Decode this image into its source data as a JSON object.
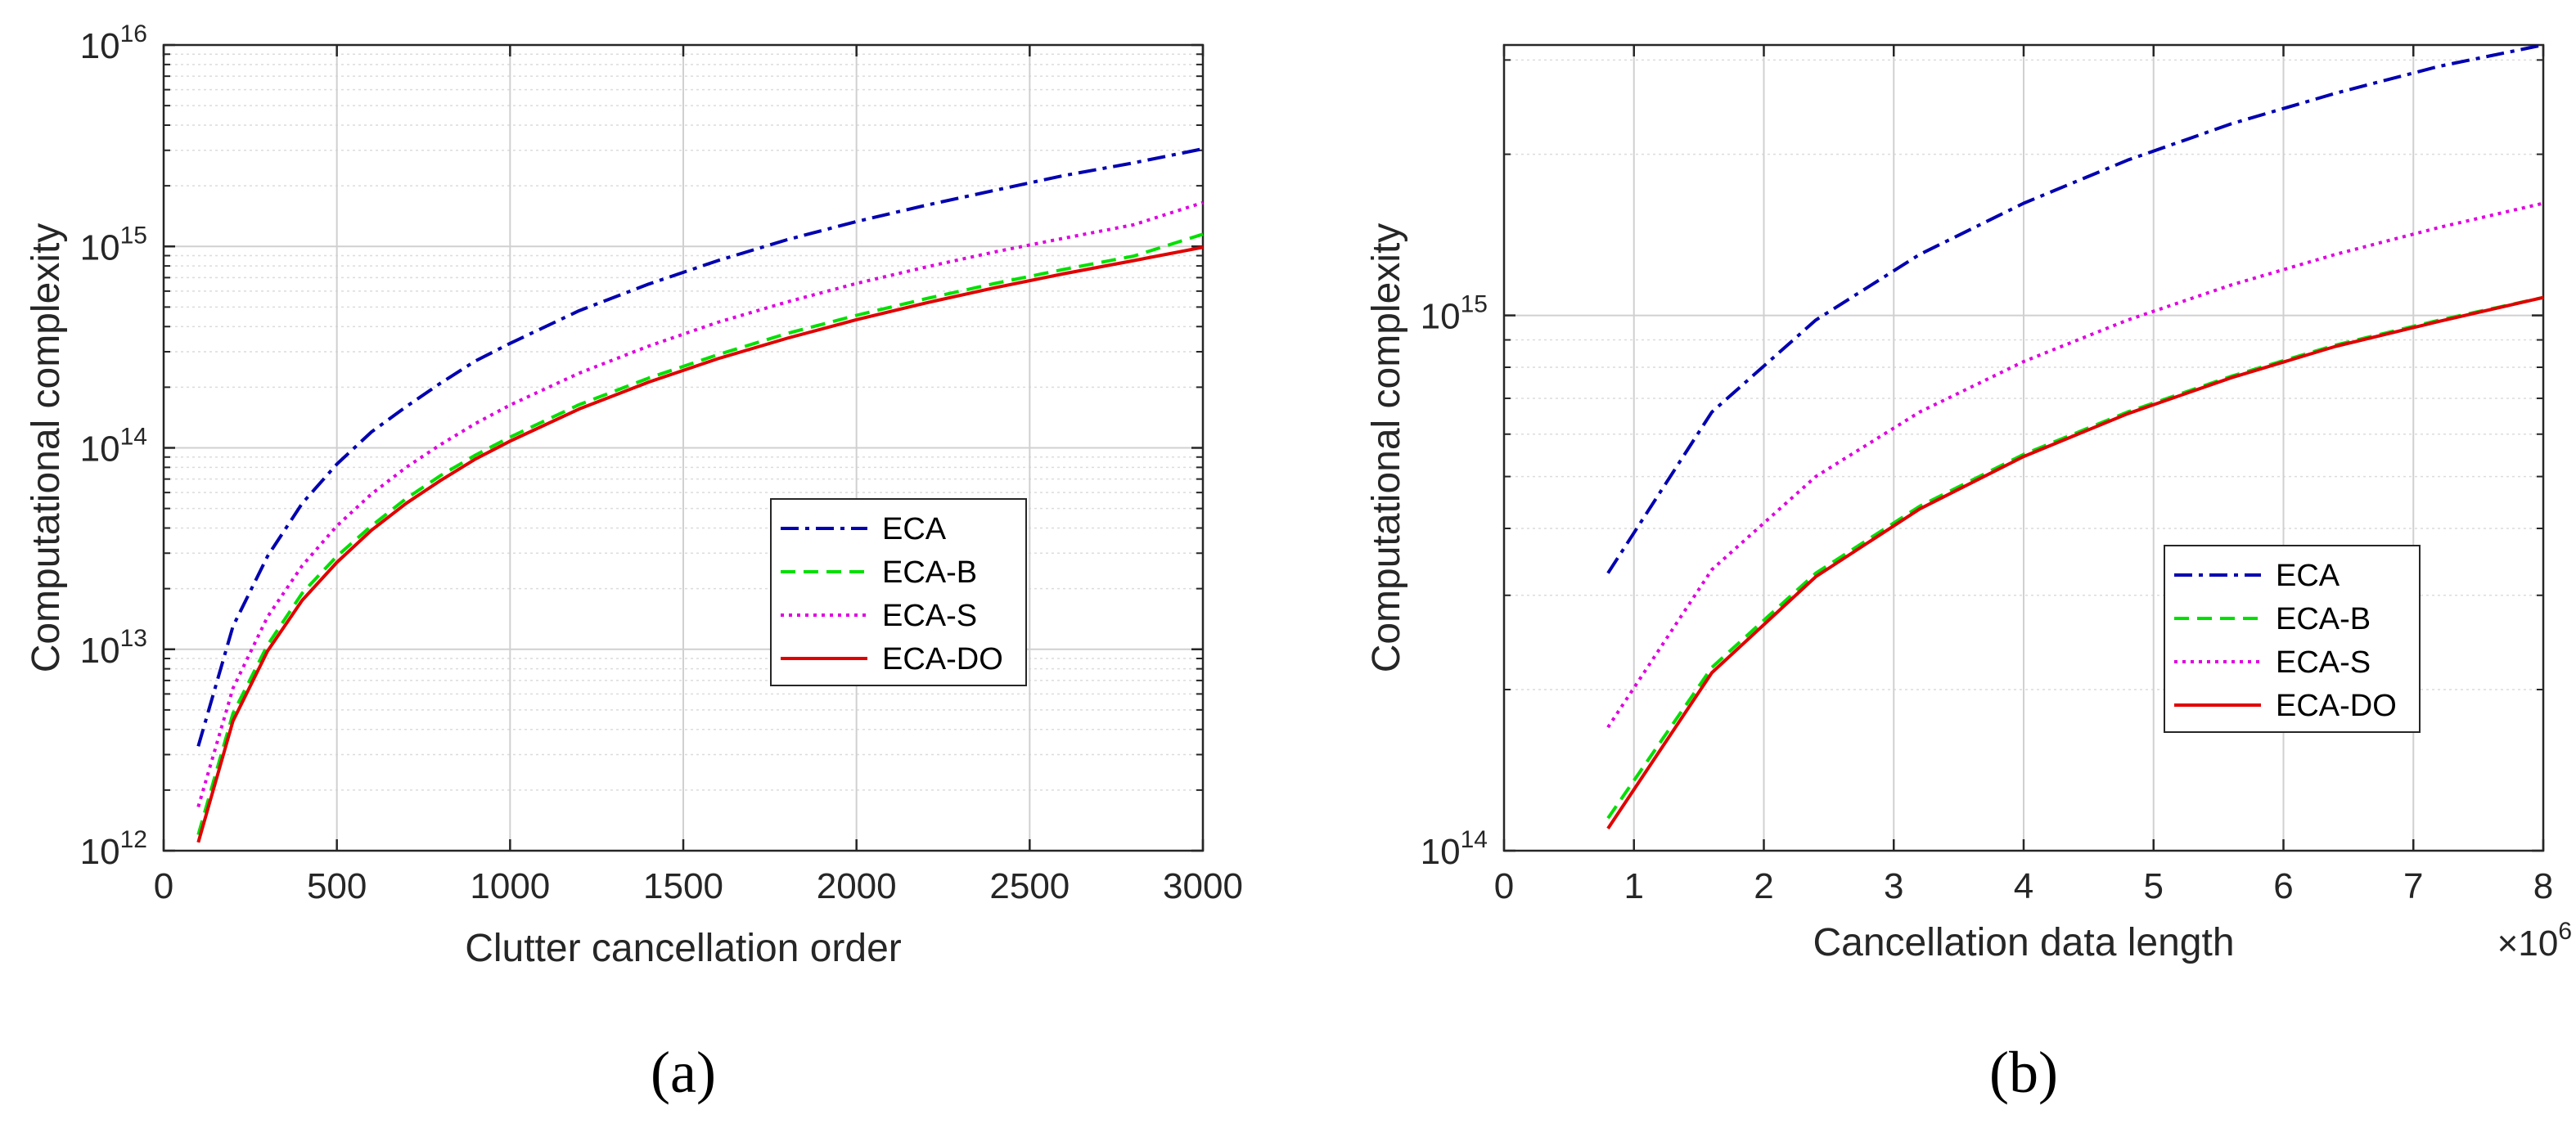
{
  "chart_data": [
    {
      "type": "line",
      "panel_label": "(a)",
      "xlabel": "Clutter cancellation order",
      "ylabel": "Computational complexity",
      "yscale": "log",
      "xlim": [
        0,
        3000
      ],
      "ylim": [
        1000000000000.0,
        1e+16
      ],
      "xticks": [
        0,
        500,
        1000,
        1500,
        2000,
        2500,
        3000
      ],
      "xtick_labels": [
        "0",
        "500",
        "1000",
        "1500",
        "2000",
        "2500",
        "3000"
      ],
      "ytick_base": "10",
      "ytick_exponents": [
        "12",
        "13",
        "14",
        "15",
        "16"
      ],
      "x_multiplier_base": "",
      "x_multiplier_exp": "",
      "x": [
        100,
        200,
        300,
        400,
        500,
        600,
        700,
        800,
        900,
        1000,
        1200,
        1400,
        1600,
        1800,
        2000,
        2200,
        2400,
        2600,
        2800,
        3000
      ],
      "series": [
        {
          "name": "ECA",
          "color": "#0000b0",
          "dash": "22,8,5,8",
          "values": [
            3300000000000.0,
            13000000000000.0,
            29000000000000.0,
            53000000000000.0,
            83000000000000.0,
            120000000000000.0,
            160000000000000.0,
            210000000000000.0,
            270000000000000.0,
            330000000000000.0,
            480000000000000.0,
            650000000000000.0,
            850000000000000.0,
            1080000000000000.0,
            1330000000000000.0,
            1600000000000000.0,
            1900000000000000.0,
            2250000000000000.0,
            2600000000000000.0,
            3050000000000000.0
          ]
        },
        {
          "name": "ECA-B",
          "color": "#00e000",
          "dash": "18,10",
          "values": [
            1200000000000.0,
            4800000000000.0,
            10500000000000.0,
            19000000000000.0,
            29000000000000.0,
            41000000000000.0,
            56000000000000.0,
            73000000000000.0,
            92000000000000.0,
            113000000000000.0,
            164000000000000.0,
            222000000000000.0,
            290000000000000.0,
            370000000000000.0,
            455000000000000.0,
            550000000000000.0,
            655000000000000.0,
            770000000000000.0,
            895000000000000.0,
            1150000000000000.0
          ]
        },
        {
          "name": "ECA-S",
          "color": "#e000e0",
          "dash": "4,6",
          "values": [
            1650000000000.0,
            6400000000000.0,
            14500000000000.0,
            26000000000000.0,
            41000000000000.0,
            59000000000000.0,
            80000000000000.0,
            104000000000000.0,
            132000000000000.0,
            163000000000000.0,
            235000000000000.0,
            320000000000000.0,
            420000000000000.0,
            530000000000000.0,
            655000000000000.0,
            790000000000000.0,
            940000000000000.0,
            1100000000000000.0,
            1280000000000000.0,
            1650000000000000.0
          ]
        },
        {
          "name": "ECA-DO",
          "color": "#e00000",
          "dash": "",
          "values": [
            1100000000000.0,
            4400000000000.0,
            9800000000000.0,
            17500000000000.0,
            27000000000000.0,
            39000000000000.0,
            53000000000000.0,
            69000000000000.0,
            88000000000000.0,
            108000000000000.0,
            156000000000000.0,
            212000000000000.0,
            277000000000000.0,
            350000000000000.0,
            433000000000000.0,
            524000000000000.0,
            624000000000000.0,
            733000000000000.0,
            850000000000000.0,
            990000000000000.0
          ]
        }
      ],
      "legend_position": "right"
    },
    {
      "type": "line",
      "panel_label": "(b)",
      "xlabel": "Cancellation data length",
      "ylabel": "Computational complexity",
      "yscale": "log",
      "xlim": [
        0,
        8
      ],
      "ylim": [
        100000000000000.0,
        3200000000000000.0
      ],
      "xticks": [
        0,
        1,
        2,
        3,
        4,
        5,
        6,
        7,
        8
      ],
      "xtick_labels": [
        "0",
        "1",
        "2",
        "3",
        "4",
        "5",
        "6",
        "7",
        "8"
      ],
      "ytick_base": "10",
      "ytick_exponents": [
        "14",
        "15"
      ],
      "x_multiplier_base": "×10",
      "x_multiplier_exp": "6",
      "x": [
        0.8,
        1.6,
        2.4,
        3.2,
        4.0,
        4.8,
        5.6,
        6.4,
        7.2,
        8.0
      ],
      "series": [
        {
          "name": "ECA",
          "color": "#0000b0",
          "dash": "22,8,5,8",
          "values": [
            330000000000000.0,
            660000000000000.0,
            980000000000000.0,
            1300000000000000.0,
            1620000000000000.0,
            1950000000000000.0,
            2280000000000000.0,
            2600000000000000.0,
            2920000000000000.0,
            3200000000000000.0
          ]
        },
        {
          "name": "ECA-B",
          "color": "#00e000",
          "dash": "18,10",
          "values": [
            115000000000000.0,
            220000000000000.0,
            330000000000000.0,
            440000000000000.0,
            550000000000000.0,
            660000000000000.0,
            770000000000000.0,
            880000000000000.0,
            980000000000000.0,
            1080000000000000.0
          ]
        },
        {
          "name": "ECA-S",
          "color": "#e000e0",
          "dash": "4,6",
          "values": [
            170000000000000.0,
            335000000000000.0,
            500000000000000.0,
            660000000000000.0,
            820000000000000.0,
            980000000000000.0,
            1140000000000000.0,
            1300000000000000.0,
            1460000000000000.0,
            1620000000000000.0
          ]
        },
        {
          "name": "ECA-DO",
          "color": "#e00000",
          "dash": "",
          "values": [
            110000000000000.0,
            215000000000000.0,
            325000000000000.0,
            435000000000000.0,
            545000000000000.0,
            655000000000000.0,
            765000000000000.0,
            875000000000000.0,
            975000000000000.0,
            1080000000000000.0
          ]
        }
      ],
      "legend_position": "right"
    }
  ]
}
